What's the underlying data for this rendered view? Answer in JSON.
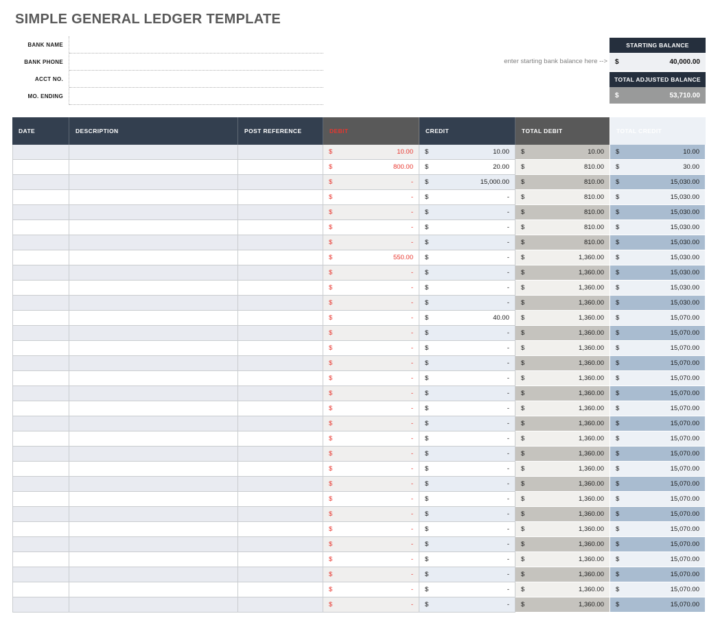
{
  "page": {
    "title": "SIMPLE GENERAL LEDGER TEMPLATE"
  },
  "bank_info": {
    "fields": [
      {
        "label": "BANK NAME",
        "value": ""
      },
      {
        "label": "BANK PHONE",
        "value": ""
      },
      {
        "label": "ACCT NO.",
        "value": ""
      },
      {
        "label": "MO. ENDING",
        "value": ""
      }
    ]
  },
  "balance_panel": {
    "hint": "enter starting bank balance here -->",
    "starting": {
      "header": "STARTING BALANCE",
      "currency": "$",
      "amount": "40,000.00"
    },
    "adjusted": {
      "header": "TOTAL ADJUSTED BALANCE",
      "currency": "$",
      "amount": "53,710.00"
    }
  },
  "ledger_table": {
    "columns": [
      "DATE",
      "DESCRIPTION",
      "POST REFERENCE",
      "DEBIT",
      "CREDIT",
      "TOTAL DEBIT",
      "TOTAL CREDIT"
    ],
    "currency_symbol": "$",
    "rows": [
      {
        "date": "",
        "description": "",
        "post_reference": "",
        "debit": "10.00",
        "credit": "10.00",
        "total_debit": "10.00",
        "total_credit": "10.00"
      },
      {
        "date": "",
        "description": "",
        "post_reference": "",
        "debit": "800.00",
        "credit": "20.00",
        "total_debit": "810.00",
        "total_credit": "30.00"
      },
      {
        "date": "",
        "description": "",
        "post_reference": "",
        "debit": "-",
        "credit": "15,000.00",
        "total_debit": "810.00",
        "total_credit": "15,030.00"
      },
      {
        "date": "",
        "description": "",
        "post_reference": "",
        "debit": "-",
        "credit": "-",
        "total_debit": "810.00",
        "total_credit": "15,030.00"
      },
      {
        "date": "",
        "description": "",
        "post_reference": "",
        "debit": "-",
        "credit": "-",
        "total_debit": "810.00",
        "total_credit": "15,030.00"
      },
      {
        "date": "",
        "description": "",
        "post_reference": "",
        "debit": "-",
        "credit": "-",
        "total_debit": "810.00",
        "total_credit": "15,030.00"
      },
      {
        "date": "",
        "description": "",
        "post_reference": "",
        "debit": "-",
        "credit": "-",
        "total_debit": "810.00",
        "total_credit": "15,030.00"
      },
      {
        "date": "",
        "description": "",
        "post_reference": "",
        "debit": "550.00",
        "credit": "-",
        "total_debit": "1,360.00",
        "total_credit": "15,030.00"
      },
      {
        "date": "",
        "description": "",
        "post_reference": "",
        "debit": "-",
        "credit": "-",
        "total_debit": "1,360.00",
        "total_credit": "15,030.00"
      },
      {
        "date": "",
        "description": "",
        "post_reference": "",
        "debit": "-",
        "credit": "-",
        "total_debit": "1,360.00",
        "total_credit": "15,030.00"
      },
      {
        "date": "",
        "description": "",
        "post_reference": "",
        "debit": "-",
        "credit": "-",
        "total_debit": "1,360.00",
        "total_credit": "15,030.00"
      },
      {
        "date": "",
        "description": "",
        "post_reference": "",
        "debit": "-",
        "credit": "40.00",
        "total_debit": "1,360.00",
        "total_credit": "15,070.00"
      },
      {
        "date": "",
        "description": "",
        "post_reference": "",
        "debit": "-",
        "credit": "-",
        "total_debit": "1,360.00",
        "total_credit": "15,070.00"
      },
      {
        "date": "",
        "description": "",
        "post_reference": "",
        "debit": "-",
        "credit": "-",
        "total_debit": "1,360.00",
        "total_credit": "15,070.00"
      },
      {
        "date": "",
        "description": "",
        "post_reference": "",
        "debit": "-",
        "credit": "-",
        "total_debit": "1,360.00",
        "total_credit": "15,070.00"
      },
      {
        "date": "",
        "description": "",
        "post_reference": "",
        "debit": "-",
        "credit": "-",
        "total_debit": "1,360.00",
        "total_credit": "15,070.00"
      },
      {
        "date": "",
        "description": "",
        "post_reference": "",
        "debit": "-",
        "credit": "-",
        "total_debit": "1,360.00",
        "total_credit": "15,070.00"
      },
      {
        "date": "",
        "description": "",
        "post_reference": "",
        "debit": "-",
        "credit": "-",
        "total_debit": "1,360.00",
        "total_credit": "15,070.00"
      },
      {
        "date": "",
        "description": "",
        "post_reference": "",
        "debit": "-",
        "credit": "-",
        "total_debit": "1,360.00",
        "total_credit": "15,070.00"
      },
      {
        "date": "",
        "description": "",
        "post_reference": "",
        "debit": "-",
        "credit": "-",
        "total_debit": "1,360.00",
        "total_credit": "15,070.00"
      },
      {
        "date": "",
        "description": "",
        "post_reference": "",
        "debit": "-",
        "credit": "-",
        "total_debit": "1,360.00",
        "total_credit": "15,070.00"
      },
      {
        "date": "",
        "description": "",
        "post_reference": "",
        "debit": "-",
        "credit": "-",
        "total_debit": "1,360.00",
        "total_credit": "15,070.00"
      },
      {
        "date": "",
        "description": "",
        "post_reference": "",
        "debit": "-",
        "credit": "-",
        "total_debit": "1,360.00",
        "total_credit": "15,070.00"
      },
      {
        "date": "",
        "description": "",
        "post_reference": "",
        "debit": "-",
        "credit": "-",
        "total_debit": "1,360.00",
        "total_credit": "15,070.00"
      },
      {
        "date": "",
        "description": "",
        "post_reference": "",
        "debit": "-",
        "credit": "-",
        "total_debit": "1,360.00",
        "total_credit": "15,070.00"
      },
      {
        "date": "",
        "description": "",
        "post_reference": "",
        "debit": "-",
        "credit": "-",
        "total_debit": "1,360.00",
        "total_credit": "15,070.00"
      },
      {
        "date": "",
        "description": "",
        "post_reference": "",
        "debit": "-",
        "credit": "-",
        "total_debit": "1,360.00",
        "total_credit": "15,070.00"
      },
      {
        "date": "",
        "description": "",
        "post_reference": "",
        "debit": "-",
        "credit": "-",
        "total_debit": "1,360.00",
        "total_credit": "15,070.00"
      },
      {
        "date": "",
        "description": "",
        "post_reference": "",
        "debit": "-",
        "credit": "-",
        "total_debit": "1,360.00",
        "total_credit": "15,070.00"
      },
      {
        "date": "",
        "description": "",
        "post_reference": "",
        "debit": "-",
        "credit": "-",
        "total_debit": "1,360.00",
        "total_credit": "15,070.00"
      },
      {
        "date": "",
        "description": "",
        "post_reference": "",
        "debit": "-",
        "credit": "-",
        "total_debit": "1,360.00",
        "total_credit": "15,070.00"
      }
    ]
  },
  "colors": {
    "header_navy": "#333f4f",
    "header_gray": "#595959",
    "balance_header_navy": "#252f3d",
    "debit_red": "#e8362e",
    "total_debit_fill": "#c5c3be",
    "total_credit_fill": "#a9bcd0",
    "adjusted_value_fill": "#999a9a"
  }
}
